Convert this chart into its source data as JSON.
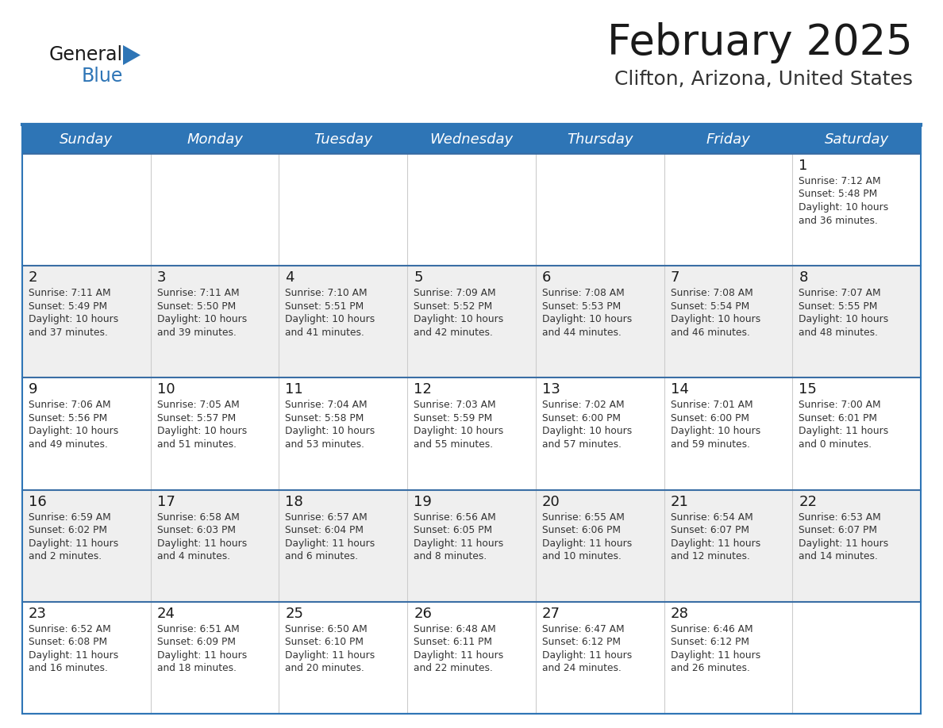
{
  "title": "February 2025",
  "subtitle": "Clifton, Arizona, United States",
  "days_of_week": [
    "Sunday",
    "Monday",
    "Tuesday",
    "Wednesday",
    "Thursday",
    "Friday",
    "Saturday"
  ],
  "header_bg": "#2E75B6",
  "header_text": "#FFFFFF",
  "cell_bg_odd": "#FFFFFF",
  "cell_bg_even": "#EFEFEF",
  "text_color": "#333333",
  "border_color": "#2E75B6",
  "divider_color": "#3A6EA5",
  "calendar_data": [
    [
      {
        "day": null,
        "sunrise": null,
        "sunset": null,
        "daylight_line1": null,
        "daylight_line2": null
      },
      {
        "day": null,
        "sunrise": null,
        "sunset": null,
        "daylight_line1": null,
        "daylight_line2": null
      },
      {
        "day": null,
        "sunrise": null,
        "sunset": null,
        "daylight_line1": null,
        "daylight_line2": null
      },
      {
        "day": null,
        "sunrise": null,
        "sunset": null,
        "daylight_line1": null,
        "daylight_line2": null
      },
      {
        "day": null,
        "sunrise": null,
        "sunset": null,
        "daylight_line1": null,
        "daylight_line2": null
      },
      {
        "day": null,
        "sunrise": null,
        "sunset": null,
        "daylight_line1": null,
        "daylight_line2": null
      },
      {
        "day": 1,
        "sunrise": "7:12 AM",
        "sunset": "5:48 PM",
        "daylight_line1": "Daylight: 10 hours",
        "daylight_line2": "and 36 minutes."
      }
    ],
    [
      {
        "day": 2,
        "sunrise": "7:11 AM",
        "sunset": "5:49 PM",
        "daylight_line1": "Daylight: 10 hours",
        "daylight_line2": "and 37 minutes."
      },
      {
        "day": 3,
        "sunrise": "7:11 AM",
        "sunset": "5:50 PM",
        "daylight_line1": "Daylight: 10 hours",
        "daylight_line2": "and 39 minutes."
      },
      {
        "day": 4,
        "sunrise": "7:10 AM",
        "sunset": "5:51 PM",
        "daylight_line1": "Daylight: 10 hours",
        "daylight_line2": "and 41 minutes."
      },
      {
        "day": 5,
        "sunrise": "7:09 AM",
        "sunset": "5:52 PM",
        "daylight_line1": "Daylight: 10 hours",
        "daylight_line2": "and 42 minutes."
      },
      {
        "day": 6,
        "sunrise": "7:08 AM",
        "sunset": "5:53 PM",
        "daylight_line1": "Daylight: 10 hours",
        "daylight_line2": "and 44 minutes."
      },
      {
        "day": 7,
        "sunrise": "7:08 AM",
        "sunset": "5:54 PM",
        "daylight_line1": "Daylight: 10 hours",
        "daylight_line2": "and 46 minutes."
      },
      {
        "day": 8,
        "sunrise": "7:07 AM",
        "sunset": "5:55 PM",
        "daylight_line1": "Daylight: 10 hours",
        "daylight_line2": "and 48 minutes."
      }
    ],
    [
      {
        "day": 9,
        "sunrise": "7:06 AM",
        "sunset": "5:56 PM",
        "daylight_line1": "Daylight: 10 hours",
        "daylight_line2": "and 49 minutes."
      },
      {
        "day": 10,
        "sunrise": "7:05 AM",
        "sunset": "5:57 PM",
        "daylight_line1": "Daylight: 10 hours",
        "daylight_line2": "and 51 minutes."
      },
      {
        "day": 11,
        "sunrise": "7:04 AM",
        "sunset": "5:58 PM",
        "daylight_line1": "Daylight: 10 hours",
        "daylight_line2": "and 53 minutes."
      },
      {
        "day": 12,
        "sunrise": "7:03 AM",
        "sunset": "5:59 PM",
        "daylight_line1": "Daylight: 10 hours",
        "daylight_line2": "and 55 minutes."
      },
      {
        "day": 13,
        "sunrise": "7:02 AM",
        "sunset": "6:00 PM",
        "daylight_line1": "Daylight: 10 hours",
        "daylight_line2": "and 57 minutes."
      },
      {
        "day": 14,
        "sunrise": "7:01 AM",
        "sunset": "6:00 PM",
        "daylight_line1": "Daylight: 10 hours",
        "daylight_line2": "and 59 minutes."
      },
      {
        "day": 15,
        "sunrise": "7:00 AM",
        "sunset": "6:01 PM",
        "daylight_line1": "Daylight: 11 hours",
        "daylight_line2": "and 0 minutes."
      }
    ],
    [
      {
        "day": 16,
        "sunrise": "6:59 AM",
        "sunset": "6:02 PM",
        "daylight_line1": "Daylight: 11 hours",
        "daylight_line2": "and 2 minutes."
      },
      {
        "day": 17,
        "sunrise": "6:58 AM",
        "sunset": "6:03 PM",
        "daylight_line1": "Daylight: 11 hours",
        "daylight_line2": "and 4 minutes."
      },
      {
        "day": 18,
        "sunrise": "6:57 AM",
        "sunset": "6:04 PM",
        "daylight_line1": "Daylight: 11 hours",
        "daylight_line2": "and 6 minutes."
      },
      {
        "day": 19,
        "sunrise": "6:56 AM",
        "sunset": "6:05 PM",
        "daylight_line1": "Daylight: 11 hours",
        "daylight_line2": "and 8 minutes."
      },
      {
        "day": 20,
        "sunrise": "6:55 AM",
        "sunset": "6:06 PM",
        "daylight_line1": "Daylight: 11 hours",
        "daylight_line2": "and 10 minutes."
      },
      {
        "day": 21,
        "sunrise": "6:54 AM",
        "sunset": "6:07 PM",
        "daylight_line1": "Daylight: 11 hours",
        "daylight_line2": "and 12 minutes."
      },
      {
        "day": 22,
        "sunrise": "6:53 AM",
        "sunset": "6:07 PM",
        "daylight_line1": "Daylight: 11 hours",
        "daylight_line2": "and 14 minutes."
      }
    ],
    [
      {
        "day": 23,
        "sunrise": "6:52 AM",
        "sunset": "6:08 PM",
        "daylight_line1": "Daylight: 11 hours",
        "daylight_line2": "and 16 minutes."
      },
      {
        "day": 24,
        "sunrise": "6:51 AM",
        "sunset": "6:09 PM",
        "daylight_line1": "Daylight: 11 hours",
        "daylight_line2": "and 18 minutes."
      },
      {
        "day": 25,
        "sunrise": "6:50 AM",
        "sunset": "6:10 PM",
        "daylight_line1": "Daylight: 11 hours",
        "daylight_line2": "and 20 minutes."
      },
      {
        "day": 26,
        "sunrise": "6:48 AM",
        "sunset": "6:11 PM",
        "daylight_line1": "Daylight: 11 hours",
        "daylight_line2": "and 22 minutes."
      },
      {
        "day": 27,
        "sunrise": "6:47 AM",
        "sunset": "6:12 PM",
        "daylight_line1": "Daylight: 11 hours",
        "daylight_line2": "and 24 minutes."
      },
      {
        "day": 28,
        "sunrise": "6:46 AM",
        "sunset": "6:12 PM",
        "daylight_line1": "Daylight: 11 hours",
        "daylight_line2": "and 26 minutes."
      },
      {
        "day": null,
        "sunrise": null,
        "sunset": null,
        "daylight_line1": null,
        "daylight_line2": null
      }
    ]
  ]
}
